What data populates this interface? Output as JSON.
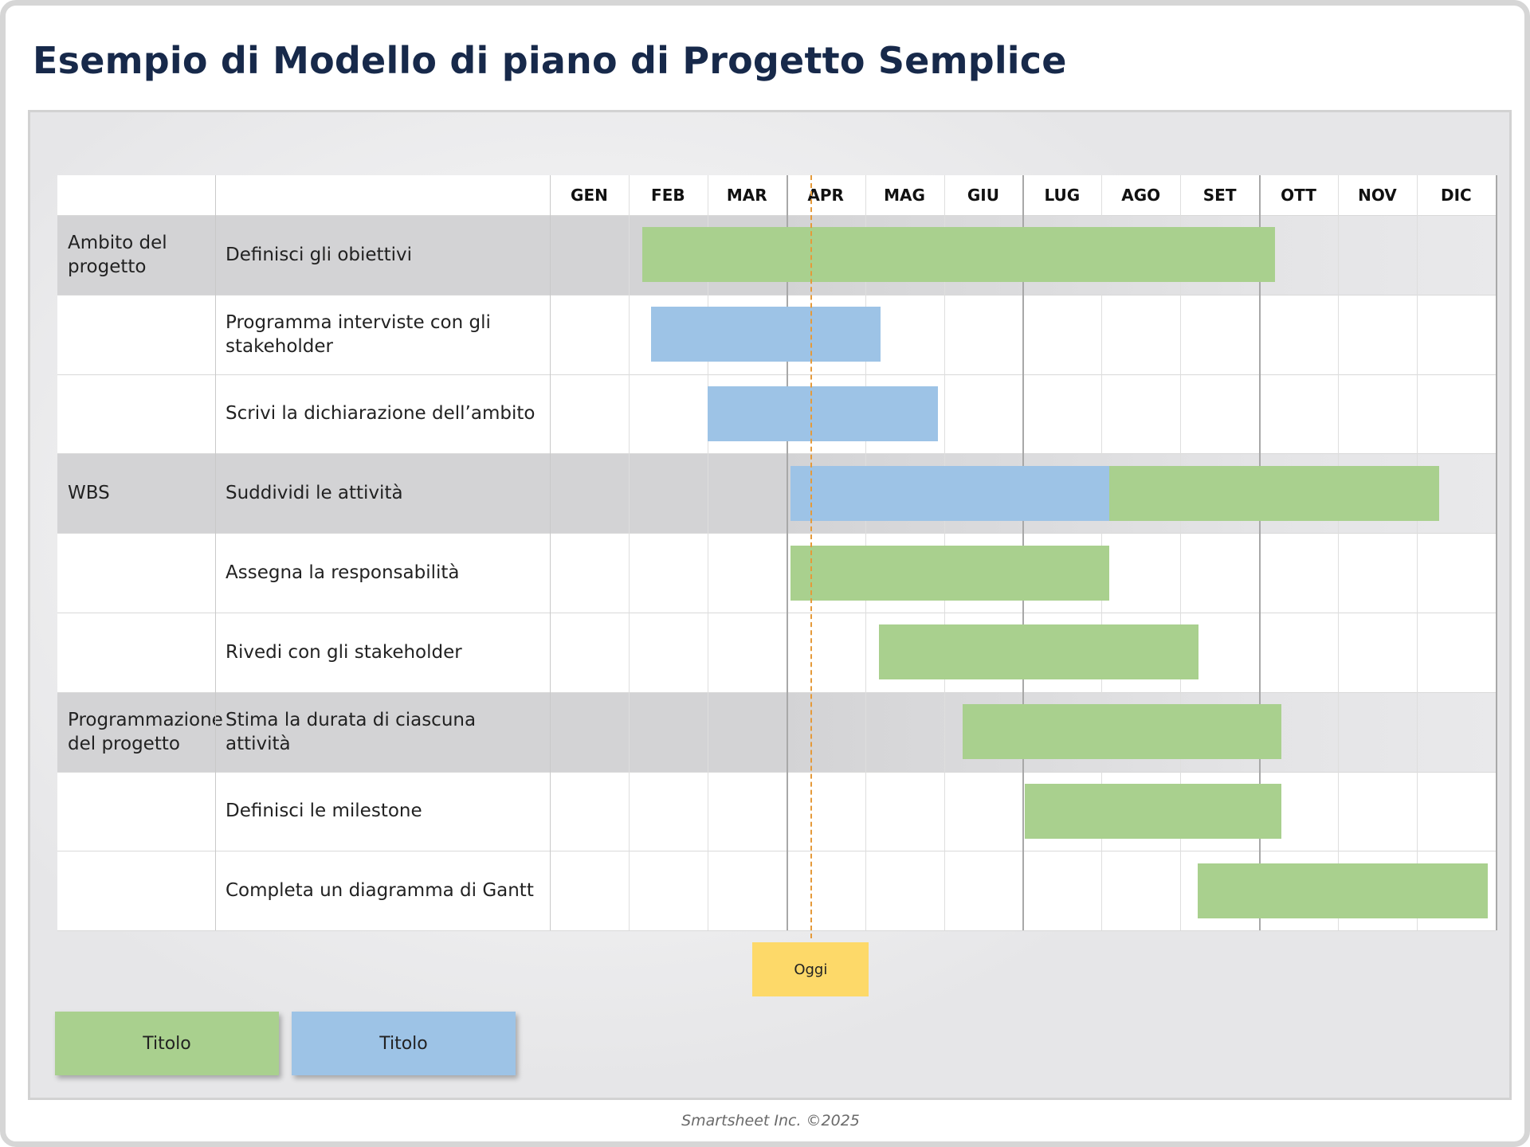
{
  "title": "Esempio di Modello di piano di Progetto Semplice",
  "months": [
    "GEN",
    "FEB",
    "MAR",
    "APR",
    "MAG",
    "GIU",
    "LUG",
    "AGO",
    "SET",
    "OTT",
    "NOV",
    "DIC"
  ],
  "rows": [
    {
      "group": "Ambito del progetto",
      "task": "Definisci gli obiettivi",
      "shaded": true
    },
    {
      "group": "",
      "task": "Programma interviste con gli stakeholder",
      "shaded": false
    },
    {
      "group": "",
      "task": "Scrivi la dichiarazione dell’ambito",
      "shaded": false
    },
    {
      "group": "WBS",
      "task": "Suddividi le attività",
      "shaded": true
    },
    {
      "group": "",
      "task": "Assegna la responsabilità",
      "shaded": false
    },
    {
      "group": "",
      "task": "Rivedi con gli stakeholder",
      "shaded": false
    },
    {
      "group": "Programmazione del progetto",
      "task": "Stima la durata di ciascuna attività",
      "shaded": true
    },
    {
      "group": "",
      "task": "Definisci le milestone",
      "shaded": false
    },
    {
      "group": "",
      "task": "Completa un diagramma di Gantt",
      "shaded": false
    }
  ],
  "bars": [
    {
      "row": 0,
      "start": 1.17,
      "end": 9.2,
      "type": "green"
    },
    {
      "row": 1,
      "start": 1.28,
      "end": 4.2,
      "type": "blue"
    },
    {
      "row": 2,
      "start": 2.0,
      "end": 4.92,
      "type": "blue"
    },
    {
      "row": 3,
      "start": 3.05,
      "end": 7.1,
      "type": "blue"
    },
    {
      "row": 3,
      "start": 7.1,
      "end": 11.28,
      "type": "green"
    },
    {
      "row": 4,
      "start": 3.05,
      "end": 7.1,
      "type": "green"
    },
    {
      "row": 5,
      "start": 4.18,
      "end": 8.23,
      "type": "green"
    },
    {
      "row": 6,
      "start": 5.24,
      "end": 9.28,
      "type": "green"
    },
    {
      "row": 7,
      "start": 6.03,
      "end": 9.28,
      "type": "green"
    },
    {
      "row": 8,
      "start": 8.22,
      "end": 11.9,
      "type": "green"
    }
  ],
  "today": {
    "label": "Oggi",
    "month_position": 3.31
  },
  "legend": [
    {
      "label": "Titolo",
      "color": "#a9d08e"
    },
    {
      "label": "Titolo",
      "color": "#9dc3e6"
    }
  ],
  "colors": {
    "green": "#a9d08e",
    "blue": "#9dc3e6",
    "shaded": "#d3d3d5",
    "today": "#fdd969"
  },
  "footer": "Smartsheet Inc. ©2025"
}
